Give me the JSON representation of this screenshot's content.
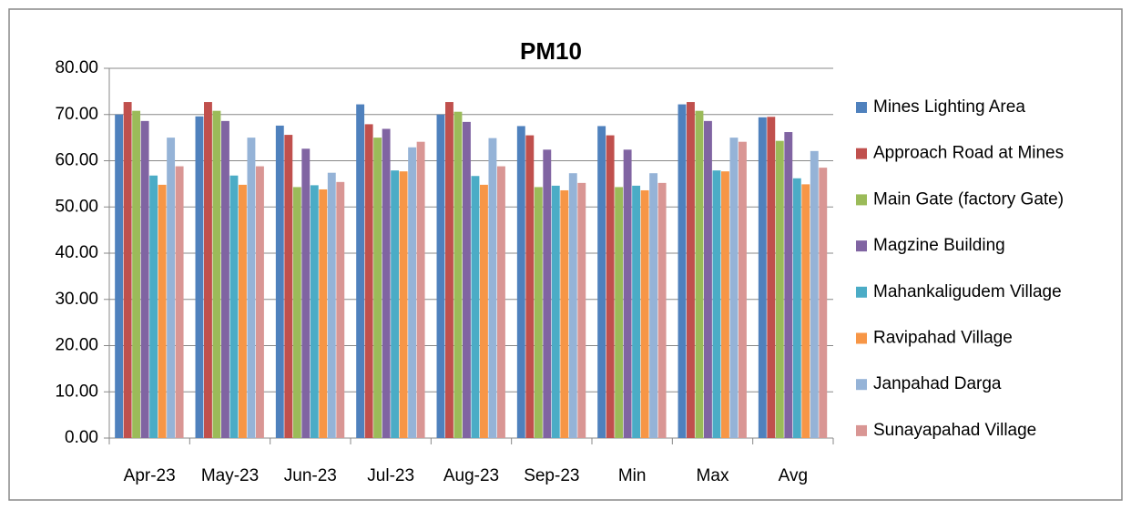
{
  "chart_data": {
    "type": "bar",
    "title": "PM10",
    "categories": [
      "Apr-23",
      "May-23",
      "Jun-23",
      "Jul-23",
      "Aug-23",
      "Sep-23",
      "Min",
      "Max",
      "Avg"
    ],
    "series": [
      {
        "name": "Mines Lighting Area",
        "color": "#4F81BD",
        "values": [
          70.0,
          69.6,
          67.6,
          72.2,
          70.0,
          67.5,
          67.5,
          72.2,
          69.4
        ]
      },
      {
        "name": "Approach Road at Mines",
        "color": "#C0504D",
        "values": [
          72.7,
          72.7,
          65.6,
          67.9,
          72.7,
          65.5,
          65.5,
          72.7,
          69.5
        ]
      },
      {
        "name": "Main Gate (factory Gate)",
        "color": "#9BBB59",
        "values": [
          70.8,
          70.8,
          54.3,
          65.0,
          70.6,
          54.3,
          54.3,
          70.8,
          64.3
        ]
      },
      {
        "name": "Magzine Building",
        "color": "#8064A2",
        "values": [
          68.6,
          68.6,
          62.6,
          66.9,
          68.4,
          62.4,
          62.4,
          68.6,
          66.2
        ]
      },
      {
        "name": "Mahankaligudem Village",
        "color": "#4BACC6",
        "values": [
          56.8,
          56.8,
          54.7,
          57.9,
          56.7,
          54.6,
          54.6,
          57.9,
          56.2
        ]
      },
      {
        "name": "Ravipahad Village",
        "color": "#F79646",
        "values": [
          54.8,
          54.8,
          53.8,
          57.7,
          54.8,
          53.6,
          53.6,
          57.7,
          54.9
        ]
      },
      {
        "name": "Janpahad Darga",
        "color": "#95B3D7",
        "values": [
          65.0,
          65.0,
          57.4,
          62.9,
          64.9,
          57.3,
          57.3,
          65.0,
          62.1
        ]
      },
      {
        "name": "Sunayapahad Village",
        "color": "#D99694",
        "values": [
          58.8,
          58.8,
          55.4,
          64.1,
          58.8,
          55.2,
          55.2,
          64.1,
          58.5
        ]
      }
    ],
    "ylim": [
      0,
      80
    ],
    "yticks": [
      {
        "value": 0,
        "label": "0.00"
      },
      {
        "value": 10,
        "label": "10.00"
      },
      {
        "value": 20,
        "label": "20.00"
      },
      {
        "value": 30,
        "label": "30.00"
      },
      {
        "value": 40,
        "label": "40.00"
      },
      {
        "value": 50,
        "label": "50.00"
      },
      {
        "value": 60,
        "label": "60.00"
      },
      {
        "value": 70,
        "label": "70.00"
      },
      {
        "value": 80,
        "label": "80.00"
      }
    ],
    "grid": true,
    "legend": "right"
  }
}
